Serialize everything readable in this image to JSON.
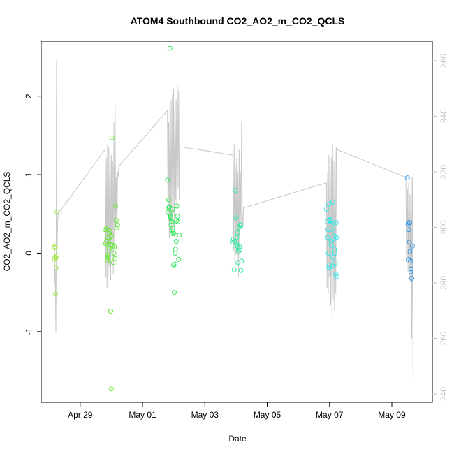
{
  "chart_data": {
    "type": "scatter",
    "title": "ATOM4 Southbound CO2_AO2_m_CO2_QCLS",
    "xlabel": "Date",
    "ylabel": "CO2_AO2_m_CO2_QCLS",
    "x_unit": "days since Apr 27 00:00",
    "xlim": [
      0.75,
      13.3
    ],
    "ylim": [
      -1.9,
      2.7
    ],
    "y2lim": [
      237,
      367
    ],
    "x_ticks": [
      {
        "value": 2,
        "label": "Apr 29"
      },
      {
        "value": 4,
        "label": "May 01"
      },
      {
        "value": 6,
        "label": "May 03"
      },
      {
        "value": 8,
        "label": "May 05"
      },
      {
        "value": 10,
        "label": "May 07"
      },
      {
        "value": 12,
        "label": "May 09"
      }
    ],
    "y_ticks": [
      -1,
      0,
      1,
      2
    ],
    "y2_ticks": [
      240,
      260,
      280,
      300,
      320,
      340,
      360
    ],
    "colors": {
      "axis": "#000000",
      "right_axis": "#bdbdbd",
      "line": "#c8c8c8"
    },
    "series": [
      {
        "name": "scatter-group-1",
        "color": "#a0e844",
        "x": [
          1.17,
          1.18,
          1.19,
          1.2,
          1.21,
          1.22,
          1.23,
          1.25,
          1.26
        ],
        "y": [
          0.08,
          -0.08,
          0.07,
          -0.05,
          -0.52,
          -0.06,
          -0.19,
          0.53,
          -0.03
        ]
      },
      {
        "name": "scatter-group-2",
        "color": "#66e833",
        "x": [
          2.8,
          2.82,
          2.84,
          2.86,
          2.88,
          2.9,
          2.92,
          2.94,
          2.96,
          2.98,
          3.0,
          3.02,
          3.04,
          3.06,
          3.08,
          3.1,
          3.12,
          3.14,
          3.16,
          3.18,
          3.2,
          2.85,
          2.95,
          3.05,
          2.9,
          3.0,
          2.87,
          2.97
        ],
        "y": [
          0.3,
          0.12,
          0.31,
          -0.1,
          0.2,
          -0.05,
          0.05,
          0.25,
          0.16,
          -0.74,
          -1.73,
          1.47,
          0.1,
          -0.12,
          0.0,
          0.08,
          -0.07,
          0.6,
          0.42,
          0.32,
          0.36,
          0.15,
          0.28,
          0.05,
          -0.02,
          0.22,
          -0.08,
          0.11
        ]
      },
      {
        "name": "scatter-group-3",
        "color": "#33e85a",
        "x": [
          4.8,
          4.82,
          4.84,
          4.86,
          4.88,
          4.9,
          4.92,
          4.94,
          4.96,
          4.98,
          5.0,
          5.02,
          5.04,
          5.06,
          5.08,
          5.1,
          5.12,
          5.14,
          5.16,
          5.18,
          4.85,
          4.95,
          5.05,
          4.91,
          5.01,
          4.87,
          4.97,
          5.09
        ],
        "y": [
          0.93,
          0.52,
          0.68,
          0.59,
          2.61,
          0.47,
          0.36,
          0.4,
          0.56,
          0.27,
          -0.15,
          -0.5,
          -0.14,
          0.05,
          0.15,
          0.6,
          0.47,
          0.4,
          -0.08,
          0.23,
          0.58,
          0.25,
          0.0,
          0.44,
          0.25,
          0.5,
          0.32,
          0.41
        ]
      },
      {
        "name": "scatter-group-4",
        "color": "#33e8a0",
        "x": [
          6.9,
          6.92,
          6.94,
          6.96,
          6.98,
          7.0,
          7.02,
          7.04,
          7.06,
          7.08,
          7.1,
          7.12,
          7.14,
          7.16,
          7.18,
          6.95,
          7.05,
          7.15,
          7.01,
          7.11
        ],
        "y": [
          0.14,
          0.18,
          -0.21,
          0.05,
          0.8,
          0.45,
          0.2,
          0.1,
          -0.12,
          0.02,
          0.33,
          0.04,
          0.36,
          -0.22,
          -0.1,
          0.15,
          0.26,
          0.35,
          0.12,
          0.08
        ]
      },
      {
        "name": "scatter-group-5",
        "color": "#33e8e8",
        "x": [
          9.9,
          9.92,
          9.94,
          9.96,
          9.98,
          10.0,
          10.02,
          10.04,
          10.06,
          10.08,
          10.1,
          10.12,
          10.14,
          10.16,
          10.18,
          10.2,
          10.22,
          10.24,
          9.95,
          10.05,
          10.15,
          10.01,
          10.11,
          10.21,
          9.97,
          10.07,
          10.17
        ],
        "y": [
          0.56,
          0.4,
          0.2,
          0.0,
          -0.18,
          -0.15,
          0.43,
          0.4,
          0.1,
          -0.17,
          0.65,
          0.38,
          0.18,
          0.05,
          -0.12,
          -0.27,
          0.2,
          -0.3,
          0.3,
          0.15,
          0.22,
          0.42,
          -0.05,
          0.39,
          0.62,
          0.3,
          0.0
        ]
      },
      {
        "name": "scatter-group-6",
        "color": "#3399e8",
        "x": [
          12.5,
          12.52,
          12.54,
          12.56,
          12.58,
          12.6,
          12.62,
          12.64,
          12.66,
          12.53,
          12.57,
          12.61,
          12.55
        ],
        "y": [
          0.96,
          0.37,
          0.3,
          0.14,
          0.02,
          -0.1,
          -0.2,
          -0.32,
          0.09,
          -0.08,
          0.39,
          -0.24,
          0.39
        ]
      }
    ],
    "line_series": {
      "name": "right-axis-trace",
      "axis": "right",
      "x": [
        1.17,
        1.18,
        1.19,
        1.2,
        1.21,
        1.22,
        1.23,
        1.24,
        1.25,
        1.26,
        1.27,
        1.28,
        1.3,
        2.8,
        2.82,
        2.84,
        2.86,
        2.88,
        2.9,
        2.92,
        2.94,
        2.96,
        2.98,
        3.0,
        3.02,
        3.04,
        3.06,
        3.08,
        3.1,
        3.12,
        3.14,
        3.16,
        3.18,
        3.2,
        3.22,
        3.24,
        4.8,
        4.82,
        4.84,
        4.86,
        4.88,
        4.9,
        4.92,
        4.94,
        4.96,
        4.98,
        5.0,
        5.02,
        5.04,
        5.06,
        5.08,
        5.1,
        5.12,
        5.14,
        5.16,
        5.18,
        5.2,
        5.22,
        6.9,
        6.92,
        6.94,
        6.96,
        6.98,
        7.0,
        7.02,
        7.04,
        7.06,
        7.08,
        7.1,
        7.12,
        7.14,
        7.16,
        7.18,
        7.2,
        7.22,
        7.24,
        9.9,
        9.92,
        9.94,
        9.96,
        9.98,
        10.0,
        10.02,
        10.04,
        10.06,
        10.08,
        10.1,
        10.12,
        10.14,
        10.16,
        10.18,
        10.2,
        10.22,
        10.24,
        12.45,
        12.47,
        12.5,
        12.52,
        12.54,
        12.56,
        12.58,
        12.6,
        12.62,
        12.64,
        12.66,
        12.68
      ],
      "y": [
        295,
        290,
        280,
        285,
        275,
        262,
        284,
        360,
        300,
        292,
        298,
        302,
        305,
        328,
        282,
        325,
        278,
        330,
        282,
        329,
        286,
        327,
        281,
        326,
        290,
        324,
        283,
        338,
        292,
        344,
        300,
        318,
        296,
        320,
        318,
        322,
        342,
        300,
        338,
        296,
        344,
        302,
        346,
        298,
        348,
        305,
        350,
        300,
        342,
        310,
        346,
        308,
        351,
        314,
        349,
        310,
        329,
        329,
        326,
        292,
        330,
        288,
        322,
        290,
        325,
        286,
        320,
        282,
        328,
        290,
        320,
        300,
        338,
        305,
        300,
        307,
        316,
        278,
        320,
        276,
        326,
        282,
        322,
        272,
        325,
        268,
        330,
        274,
        324,
        270,
        328,
        276,
        329,
        328,
        318,
        288,
        314,
        284,
        316,
        282,
        312,
        280,
        318,
        260,
        318,
        246
      ]
    }
  }
}
